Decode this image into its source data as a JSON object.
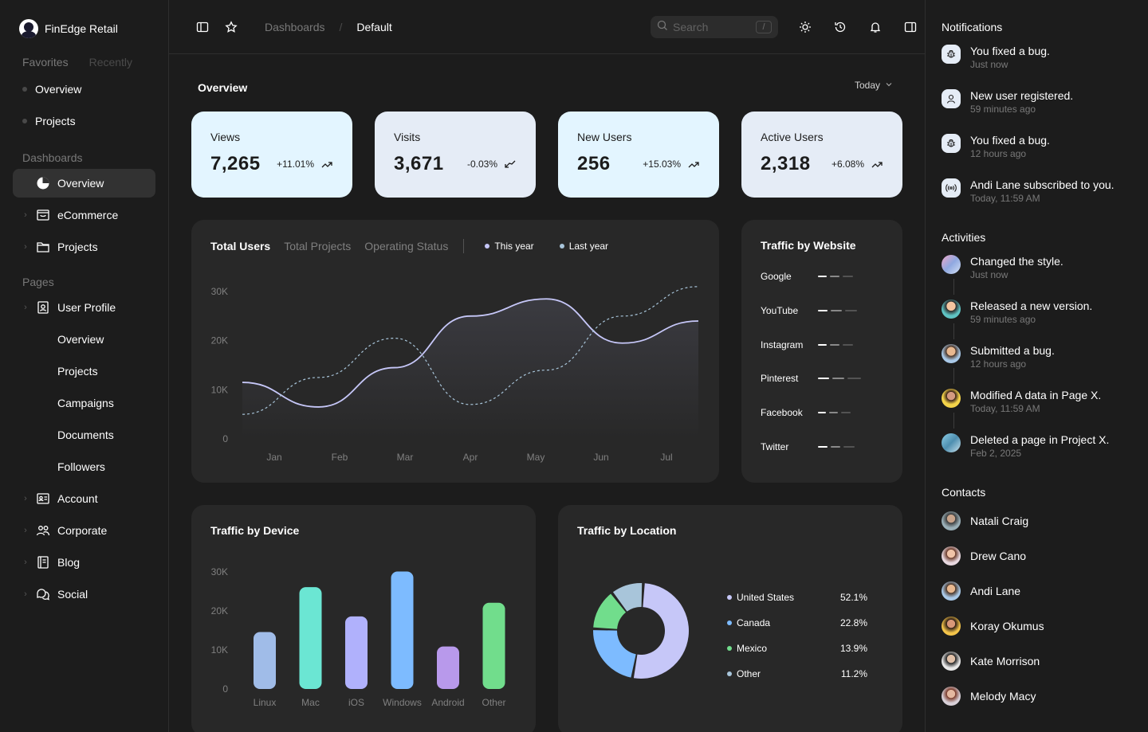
{
  "brand": {
    "name": "FinEdge Retail"
  },
  "favorites": {
    "tabs": [
      "Favorites",
      "Recently"
    ],
    "items": [
      "Overview",
      "Projects"
    ]
  },
  "sidebar": {
    "dashboards_title": "Dashboards",
    "dashboards": [
      "Overview",
      "eCommerce",
      "Projects"
    ],
    "pages_title": "Pages",
    "user_profile": "User Profile",
    "user_profile_sub": [
      "Overview",
      "Projects",
      "Campaigns",
      "Documents",
      "Followers"
    ],
    "pages": [
      "Account",
      "Corporate",
      "Blog",
      "Social"
    ]
  },
  "header": {
    "breadcrumb": [
      "Dashboards",
      "Default"
    ],
    "search_placeholder": "Search",
    "search_shortcut": "/"
  },
  "overview": {
    "title": "Overview",
    "range": "Today",
    "stats": [
      {
        "label": "Views",
        "value": "7,265",
        "change": "+11.01%",
        "trend": "up",
        "bg": "#e3f5ff"
      },
      {
        "label": "Visits",
        "value": "3,671",
        "change": "-0.03%",
        "trend": "down",
        "bg": "#e5ecf6"
      },
      {
        "label": "New Users",
        "value": "256",
        "change": "+15.03%",
        "trend": "up",
        "bg": "#e3f5ff"
      },
      {
        "label": "Active Users",
        "value": "2,318",
        "change": "+6.08%",
        "trend": "up",
        "bg": "#e5ecf6"
      }
    ]
  },
  "users_chart": {
    "tabs": [
      "Total Users",
      "Total Projects",
      "Operating Status"
    ],
    "legend": [
      "This year",
      "Last year"
    ]
  },
  "traffic_website": {
    "title": "Traffic by Website",
    "sites": [
      "Google",
      "YouTube",
      "Instagram",
      "Pinterest",
      "Facebook",
      "Twitter"
    ]
  },
  "traffic_device": {
    "title": "Traffic by Device"
  },
  "traffic_location": {
    "title": "Traffic by Location",
    "items": [
      {
        "name": "United States",
        "pct": "52.1%"
      },
      {
        "name": "Canada",
        "pct": "22.8%"
      },
      {
        "name": "Mexico",
        "pct": "13.9%"
      },
      {
        "name": "Other",
        "pct": "11.2%"
      }
    ]
  },
  "notifications": {
    "title": "Notifications",
    "items": [
      {
        "text": "You fixed a bug.",
        "time": "Just now",
        "icon": "bug-icon"
      },
      {
        "text": "New user registered.",
        "time": "59 minutes ago",
        "icon": "user-icon"
      },
      {
        "text": "You fixed a bug.",
        "time": "12 hours ago",
        "icon": "bug-icon"
      },
      {
        "text": "Andi Lane subscribed to you.",
        "time": "Today, 11:59 AM",
        "icon": "broadcast-icon"
      }
    ]
  },
  "activities": {
    "title": "Activities",
    "items": [
      {
        "text": "Changed the style.",
        "time": "Just now"
      },
      {
        "text": "Released a new version.",
        "time": "59 minutes ago"
      },
      {
        "text": "Submitted a bug.",
        "time": "12 hours ago"
      },
      {
        "text": "Modified A data in Page X.",
        "time": "Today, 11:59 AM"
      },
      {
        "text": "Deleted a page in Project X.",
        "time": "Feb 2, 2025"
      }
    ]
  },
  "contacts": {
    "title": "Contacts",
    "items": [
      "Natali Craig",
      "Drew Cano",
      "Andi Lane",
      "Koray Okumus",
      "Kate Morrison",
      "Melody Macy"
    ]
  },
  "chart_data": [
    {
      "type": "line",
      "title": "Total Users",
      "categories": [
        "Jan",
        "Feb",
        "Mar",
        "Apr",
        "May",
        "Jun",
        "Jul"
      ],
      "yticks": [
        "0",
        "10K",
        "20K",
        "30K"
      ],
      "ylim": [
        0,
        30000
      ],
      "series": [
        {
          "name": "This year",
          "values": [
            11500,
            6500,
            14500,
            25000,
            28500,
            19500,
            24000
          ],
          "color": "#c6c7f8",
          "dashed": false
        },
        {
          "name": "Last year",
          "values": [
            5000,
            12500,
            20500,
            7000,
            14000,
            25000,
            31000
          ],
          "color": "#a8c5da",
          "dashed": true
        }
      ],
      "legend_colors": [
        "#c6c7f8",
        "#a8c5da"
      ]
    },
    {
      "type": "bar",
      "title": "Traffic by Device",
      "categories": [
        "Linux",
        "Mac",
        "iOS",
        "Windows",
        "Android",
        "Other"
      ],
      "values": [
        15000,
        26500,
        19000,
        30500,
        11300,
        22500
      ],
      "colors": [
        "#a0bce8",
        "#6be6d3",
        "#b0b1fc",
        "#7dbbff",
        "#b899eb",
        "#71dd8c"
      ],
      "yticks": [
        "0",
        "10K",
        "20K",
        "30K"
      ],
      "ylim": [
        0,
        30000
      ]
    },
    {
      "type": "bar",
      "title": "Traffic by Website",
      "categories": [
        "Google",
        "YouTube",
        "Instagram",
        "Pinterest",
        "Facebook",
        "Twitter"
      ],
      "values": [
        3,
        4,
        3,
        5,
        2.5,
        3.5
      ]
    },
    {
      "type": "pie",
      "title": "Traffic by Location",
      "categories": [
        "United States",
        "Canada",
        "Mexico",
        "Other"
      ],
      "values": [
        52.1,
        22.8,
        13.9,
        11.2
      ],
      "colors": [
        "#c6c7f8",
        "#7dbbff",
        "#71dd8c",
        "#a8c5da"
      ]
    }
  ]
}
